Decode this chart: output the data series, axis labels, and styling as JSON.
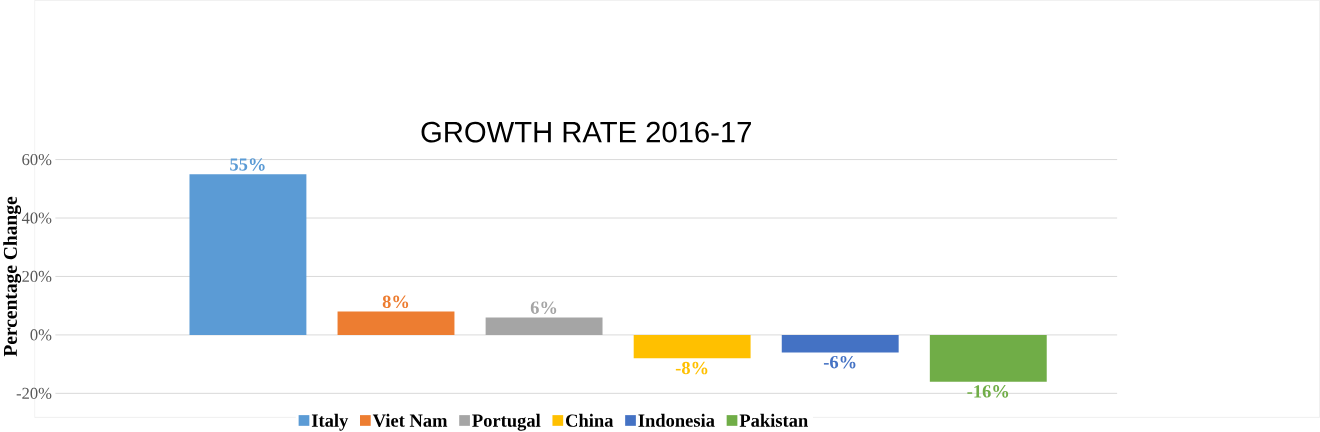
{
  "chart_data": {
    "type": "bar",
    "title": "GROWTH RATE 2016-17",
    "ylabel": "Percentage Change",
    "categories": [
      null
    ],
    "series": [
      {
        "name": "Italy",
        "color": "#5b9bd5",
        "values": [
          55
        ],
        "value_labels": [
          "55%"
        ]
      },
      {
        "name": "Viet Nam",
        "color": "#ed7d31",
        "values": [
          8
        ],
        "value_labels": [
          "8%"
        ]
      },
      {
        "name": "Portugal",
        "color": "#a5a5a5",
        "values": [
          6
        ],
        "value_labels": [
          "6%"
        ]
      },
      {
        "name": "China",
        "color": "#ffc000",
        "values": [
          -8
        ],
        "value_labels": [
          "-8%"
        ]
      },
      {
        "name": "Indonesia",
        "color": "#4472c4",
        "values": [
          -6
        ],
        "value_labels": [
          "-6%"
        ]
      },
      {
        "name": "Pakistan",
        "color": "#70ad47",
        "values": [
          -16
        ],
        "value_labels": [
          "-16%"
        ]
      }
    ],
    "ylim": [
      -20,
      60
    ],
    "yticks": [
      {
        "value": -20,
        "label": "-20%"
      },
      {
        "value": 0,
        "label": "0%"
      },
      {
        "value": 20,
        "label": "20%"
      },
      {
        "value": 40,
        "label": "40%"
      },
      {
        "value": 60,
        "label": "60%"
      }
    ],
    "grid": "y",
    "legend": "bottom"
  }
}
